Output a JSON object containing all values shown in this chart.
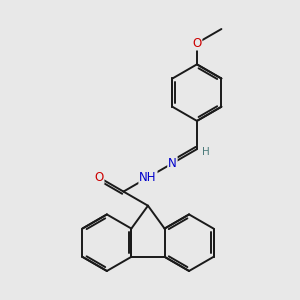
{
  "background_color": "#e8e8e8",
  "bond_color": "#1a1a1a",
  "bond_width": 1.4,
  "atom_colors": {
    "O": "#cc0000",
    "N": "#0000cc",
    "H": "#4a7a7a"
  },
  "font_size_large": 8.5,
  "font_size_small": 7.5,
  "fig_width": 3.0,
  "fig_height": 3.0,
  "dpi": 100
}
